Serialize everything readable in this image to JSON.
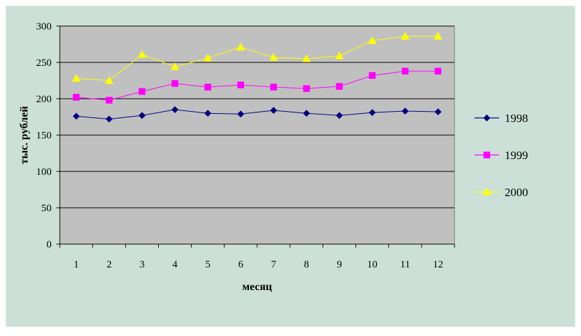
{
  "colors": {
    "background": "#cce0d8",
    "plot_area": "#c0c0c0",
    "gridline": "#000000",
    "series": {
      "1998": "#000080",
      "1999": "#ff00ff",
      "2000": "#ffff00"
    }
  },
  "chart_data": {
    "type": "line",
    "title": "",
    "xlabel": "месяц",
    "ylabel": "тыс. рублей",
    "categories": [
      "1",
      "2",
      "3",
      "4",
      "5",
      "6",
      "7",
      "8",
      "9",
      "10",
      "11",
      "12"
    ],
    "y_ticks": [
      "0",
      "50",
      "100",
      "150",
      "200",
      "250",
      "300"
    ],
    "ylim": [
      0,
      300
    ],
    "grid": true,
    "legend_position": "right",
    "series": [
      {
        "name": "1998",
        "marker": "diamond",
        "values": [
          176,
          172,
          177,
          185,
          180,
          179,
          184,
          180,
          177,
          181,
          183,
          182
        ]
      },
      {
        "name": "1999",
        "marker": "square",
        "values": [
          202,
          198,
          210,
          221,
          216,
          219,
          216,
          214,
          217,
          232,
          238,
          238
        ]
      },
      {
        "name": "2000",
        "marker": "triangle",
        "values": [
          228,
          225,
          261,
          244,
          256,
          271,
          257,
          255,
          259,
          280,
          286,
          286
        ]
      }
    ]
  }
}
